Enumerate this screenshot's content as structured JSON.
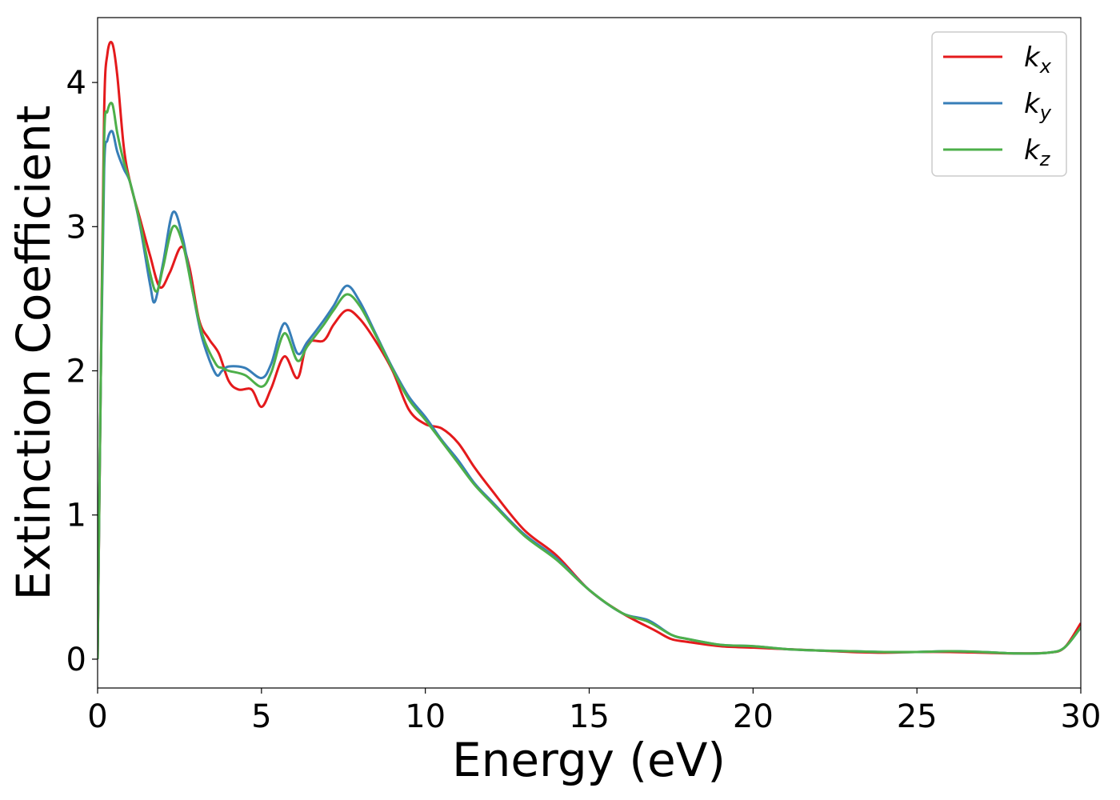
{
  "chart_data": {
    "type": "line",
    "title": "",
    "xlabel": "Energy (eV)",
    "ylabel": "Extinction Coefficient",
    "xlim": [
      0,
      30
    ],
    "ylim": [
      -0.2,
      4.45
    ],
    "xticks": [
      0,
      5,
      10,
      15,
      20,
      25,
      30
    ],
    "xtick_labels": [
      "0",
      "5",
      "10",
      "15",
      "20",
      "25",
      "30"
    ],
    "yticks": [
      0,
      1,
      2,
      3,
      4
    ],
    "ytick_labels": [
      "0",
      "1",
      "2",
      "3",
      "4"
    ],
    "grid": false,
    "legend_position": "top-right",
    "series": [
      {
        "name": "kx",
        "label_base": "k",
        "label_sub": "x",
        "color": "#e41a1c",
        "x": [
          0,
          0.1,
          0.2,
          0.3,
          0.45,
          0.6,
          0.8,
          1.0,
          1.3,
          1.6,
          1.9,
          2.2,
          2.55,
          2.8,
          3.1,
          3.4,
          3.7,
          4.0,
          4.3,
          4.7,
          5.0,
          5.3,
          5.7,
          6.1,
          6.4,
          6.9,
          7.2,
          7.6,
          8.0,
          8.5,
          9.0,
          9.5,
          10.0,
          10.5,
          11.0,
          11.5,
          12.0,
          13.0,
          14.0,
          15.0,
          16.0,
          17.0,
          17.5,
          18.0,
          19.0,
          20.0,
          21.0,
          22.0,
          23.0,
          24.0,
          25.0,
          26.0,
          27.0,
          28.0,
          29.0,
          29.5,
          30.0
        ],
        "y": [
          0,
          2.0,
          3.8,
          4.2,
          4.27,
          4.05,
          3.55,
          3.3,
          3.05,
          2.8,
          2.58,
          2.68,
          2.86,
          2.72,
          2.35,
          2.22,
          2.12,
          1.93,
          1.87,
          1.87,
          1.75,
          1.88,
          2.1,
          1.95,
          2.19,
          2.21,
          2.32,
          2.42,
          2.36,
          2.2,
          2.0,
          1.73,
          1.63,
          1.6,
          1.5,
          1.33,
          1.18,
          0.9,
          0.72,
          0.48,
          0.32,
          0.2,
          0.14,
          0.12,
          0.09,
          0.08,
          0.07,
          0.06,
          0.05,
          0.045,
          0.05,
          0.05,
          0.045,
          0.04,
          0.045,
          0.08,
          0.25
        ]
      },
      {
        "name": "ky",
        "label_base": "k",
        "label_sub": "y",
        "color": "#377eb8",
        "x": [
          0,
          0.1,
          0.2,
          0.3,
          0.45,
          0.6,
          0.8,
          1.0,
          1.3,
          1.6,
          1.75,
          2.0,
          2.3,
          2.6,
          2.9,
          3.2,
          3.6,
          3.8,
          4.0,
          4.5,
          5.0,
          5.3,
          5.7,
          6.1,
          6.4,
          6.9,
          7.2,
          7.6,
          8.0,
          8.5,
          9.0,
          9.5,
          10.0,
          10.5,
          11.0,
          11.5,
          12.0,
          13.0,
          14.0,
          15.0,
          16.0,
          16.8,
          17.5,
          18.0,
          19.0,
          20.0,
          21.0,
          22.0,
          23.0,
          24.0,
          25.0,
          26.0,
          27.0,
          28.0,
          29.0,
          29.5,
          30.0
        ],
        "y": [
          0,
          2.0,
          3.4,
          3.6,
          3.66,
          3.52,
          3.4,
          3.3,
          3.0,
          2.6,
          2.48,
          2.75,
          3.1,
          2.92,
          2.55,
          2.22,
          1.98,
          2.0,
          2.03,
          2.02,
          1.95,
          2.05,
          2.33,
          2.12,
          2.2,
          2.35,
          2.45,
          2.59,
          2.48,
          2.25,
          2.02,
          1.82,
          1.68,
          1.52,
          1.38,
          1.22,
          1.1,
          0.87,
          0.7,
          0.48,
          0.32,
          0.27,
          0.17,
          0.14,
          0.1,
          0.09,
          0.07,
          0.06,
          0.055,
          0.05,
          0.05,
          0.055,
          0.05,
          0.04,
          0.045,
          0.08,
          0.22
        ]
      },
      {
        "name": "kz",
        "label_base": "k",
        "label_sub": "z",
        "color": "#4daf4a",
        "x": [
          0,
          0.1,
          0.2,
          0.3,
          0.45,
          0.6,
          0.8,
          1.0,
          1.3,
          1.6,
          1.8,
          2.0,
          2.3,
          2.6,
          2.9,
          3.2,
          3.6,
          3.8,
          4.0,
          4.5,
          5.0,
          5.3,
          5.7,
          6.1,
          6.4,
          6.9,
          7.2,
          7.6,
          8.0,
          8.5,
          9.0,
          9.5,
          10.0,
          10.5,
          11.0,
          11.5,
          12.0,
          13.0,
          14.0,
          15.0,
          16.0,
          16.8,
          17.5,
          18.0,
          19.0,
          20.0,
          21.0,
          22.0,
          23.0,
          24.0,
          25.0,
          26.0,
          27.0,
          28.0,
          29.0,
          29.5,
          30.0
        ],
        "y": [
          0,
          2.0,
          3.6,
          3.8,
          3.85,
          3.65,
          3.45,
          3.3,
          3.02,
          2.68,
          2.55,
          2.72,
          3.0,
          2.88,
          2.55,
          2.25,
          2.05,
          2.02,
          2.0,
          1.97,
          1.89,
          1.99,
          2.26,
          2.07,
          2.17,
          2.32,
          2.42,
          2.53,
          2.45,
          2.24,
          2.01,
          1.8,
          1.66,
          1.51,
          1.36,
          1.21,
          1.09,
          0.86,
          0.69,
          0.48,
          0.32,
          0.26,
          0.17,
          0.14,
          0.1,
          0.09,
          0.07,
          0.06,
          0.055,
          0.05,
          0.05,
          0.055,
          0.05,
          0.04,
          0.045,
          0.08,
          0.22
        ]
      }
    ]
  }
}
